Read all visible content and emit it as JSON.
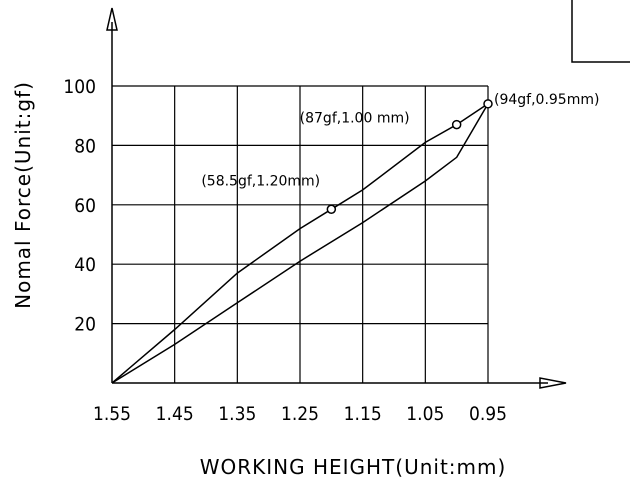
{
  "chart_data": {
    "type": "line",
    "xlabel": "WORKING HEIGHT(Unit:mm)",
    "ylabel": "Nomal Force(Unit:gf)",
    "x_ticks": [
      "1.55",
      "1.45",
      "1.35",
      "1.25",
      "1.15",
      "1.05",
      "0.95"
    ],
    "y_ticks": [
      "100",
      "80",
      "60",
      "40",
      "20"
    ],
    "xlim": [
      1.55,
      0.95
    ],
    "ylim": [
      0,
      100
    ],
    "grid": true,
    "series": [
      {
        "x": [
          1.55,
          1.45,
          1.35,
          1.25,
          1.2,
          1.15,
          1.05,
          1.0,
          0.95
        ],
        "y": [
          0,
          18,
          37,
          52,
          58.5,
          65,
          81,
          87,
          94
        ]
      },
      {
        "x": [
          1.55,
          1.45,
          1.35,
          1.25,
          1.15,
          1.05,
          1.0,
          0.95
        ],
        "y": [
          0,
          13,
          27,
          41,
          54,
          68,
          76,
          94
        ]
      }
    ],
    "annotations": [
      {
        "x": 1.2,
        "y": 58.5,
        "text": "(58.5gf,1.20mm)"
      },
      {
        "x": 1.0,
        "y": 87,
        "text": "(87gf,1.00 mm)"
      },
      {
        "x": 0.95,
        "y": 94,
        "text": "(94gf,0.95mm)"
      }
    ]
  }
}
